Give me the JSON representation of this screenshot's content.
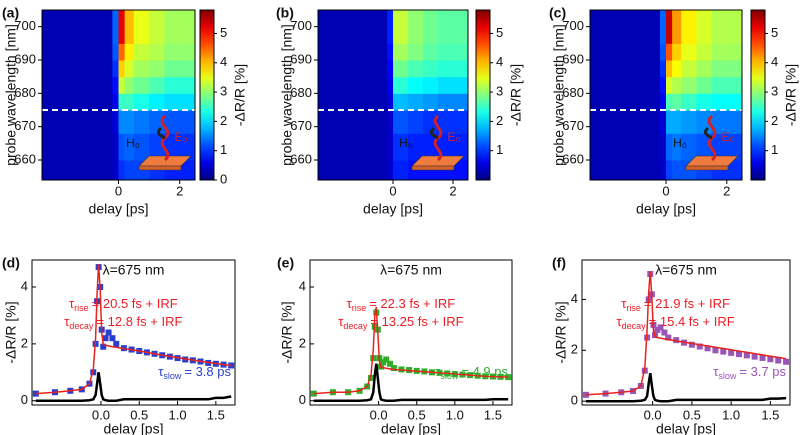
{
  "chart_data": [
    {
      "type": "heatmap",
      "label": "(a)",
      "xlabel": "delay [ps]",
      "ylabel": "probe wavelength [nm]",
      "colorbar_label": "-ΔR/R [%]",
      "x_edges": [
        -2.5,
        -0.2,
        0,
        0.2,
        0.5,
        1,
        1.5,
        2.5
      ],
      "y_edges": [
        654,
        660,
        668,
        675,
        680,
        685,
        690,
        695,
        705
      ],
      "values": [
        [
          0.3,
          0.4,
          1.0,
          1.1,
          1.1,
          1.0,
          0.9
        ],
        [
          0.3,
          0.4,
          1.2,
          1.3,
          1.2,
          1.1,
          1.0
        ],
        [
          0.3,
          0.5,
          1.5,
          1.5,
          1.4,
          1.3,
          1.2
        ],
        [
          0.3,
          0.6,
          2.5,
          2.5,
          2.3,
          2.1,
          2.0
        ],
        [
          0.3,
          0.8,
          3.3,
          3.0,
          2.8,
          2.6,
          2.4
        ],
        [
          0.3,
          1.0,
          3.9,
          3.4,
          3.1,
          3.0,
          2.8
        ],
        [
          0.3,
          1.2,
          4.5,
          3.7,
          3.3,
          3.2,
          3.0
        ],
        [
          0.3,
          1.3,
          5.2,
          4.0,
          3.5,
          3.3,
          3.1
        ]
      ],
      "xlim": [
        -2.5,
        2.5
      ],
      "ylim": [
        654,
        705
      ],
      "xticks": [
        0,
        2
      ],
      "yticks": [
        660,
        670,
        680,
        690,
        700
      ],
      "clim": [
        0,
        5.8
      ],
      "cticks": [
        0,
        1,
        2,
        3,
        4,
        5
      ],
      "colormap": "jet",
      "hline": 675,
      "inset_h": "H₀",
      "inset_e": "E₀"
    },
    {
      "type": "heatmap",
      "label": "(b)",
      "xlabel": "delay [ps]",
      "ylabel": "probe wavelength [nm]",
      "colorbar_label": "-ΔR/R [%]",
      "x_edges": [
        -2.5,
        -0.2,
        0,
        0.2,
        0.5,
        1,
        1.5,
        2.5
      ],
      "y_edges": [
        654,
        660,
        668,
        675,
        680,
        685,
        690,
        695,
        705
      ],
      "values": [
        [
          0.3,
          0.4,
          0.9,
          0.9,
          0.8,
          0.8,
          0.8
        ],
        [
          0.3,
          0.4,
          1.0,
          1.0,
          0.9,
          0.9,
          0.9
        ],
        [
          0.3,
          0.4,
          1.2,
          1.2,
          1.1,
          1.0,
          1.0
        ],
        [
          0.3,
          0.5,
          1.8,
          1.8,
          1.7,
          1.6,
          1.5
        ],
        [
          0.3,
          0.6,
          2.4,
          2.4,
          2.2,
          2.1,
          2.0
        ],
        [
          0.3,
          0.7,
          2.8,
          2.8,
          2.6,
          2.5,
          2.4
        ],
        [
          0.3,
          0.8,
          3.1,
          3.1,
          2.9,
          2.7,
          2.6
        ],
        [
          0.3,
          0.9,
          3.3,
          3.3,
          3.0,
          2.8,
          2.7
        ]
      ],
      "xlim": [
        -2.5,
        2.5
      ],
      "ylim": [
        654,
        705
      ],
      "xticks": [
        0,
        2
      ],
      "yticks": [
        660,
        670,
        680,
        690,
        700
      ],
      "clim": [
        0,
        5.8
      ],
      "cticks": [
        1,
        2,
        3,
        4,
        5
      ],
      "colormap": "jet",
      "hline": 675,
      "inset_h": "H₀",
      "inset_e": "E₀"
    },
    {
      "type": "heatmap",
      "label": "(c)",
      "xlabel": "delay [ps]",
      "ylabel": "probe wavelength [nm]",
      "colorbar_label": "-ΔR/R [%]",
      "x_edges": [
        -2.5,
        -0.2,
        0,
        0.2,
        0.5,
        1,
        1.5,
        2.5
      ],
      "y_edges": [
        654,
        660,
        668,
        675,
        680,
        685,
        690,
        695,
        705
      ],
      "values": [
        [
          0.3,
          0.4,
          1.1,
          1.2,
          1.2,
          1.1,
          1.0
        ],
        [
          0.3,
          0.4,
          1.3,
          1.4,
          1.3,
          1.2,
          1.1
        ],
        [
          0.3,
          0.5,
          1.7,
          1.7,
          1.6,
          1.5,
          1.4
        ],
        [
          0.3,
          0.6,
          2.6,
          2.7,
          2.5,
          2.3,
          2.2
        ],
        [
          0.3,
          0.8,
          3.4,
          3.2,
          3.0,
          2.8,
          2.6
        ],
        [
          0.3,
          1.0,
          4.0,
          3.6,
          3.3,
          3.1,
          2.9
        ],
        [
          0.3,
          1.2,
          4.6,
          3.9,
          3.5,
          3.3,
          3.1
        ],
        [
          0.3,
          1.3,
          5.4,
          4.2,
          3.7,
          3.4,
          3.2
        ]
      ],
      "xlim": [
        -2.5,
        2.5
      ],
      "ylim": [
        654,
        705
      ],
      "xticks": [
        0,
        2
      ],
      "yticks": [
        660,
        670,
        680,
        690,
        700
      ],
      "clim": [
        0,
        5.8
      ],
      "cticks": [
        1,
        2,
        3,
        4,
        5
      ],
      "colormap": "jet",
      "hline": 675,
      "inset_h": "H₀",
      "inset_e": "E₀"
    },
    {
      "type": "line",
      "label": "(d)",
      "title": "λ=675 nm",
      "xlabel": "delay [ps]",
      "ylabel": "-ΔR/R [%]",
      "xlim": [
        -0.9,
        1.75
      ],
      "ylim": [
        -0.15,
        4.95
      ],
      "xticks": [
        {
          "value": 0,
          "label": "0.0"
        },
        {
          "value": 0.5,
          "label": "0.5"
        },
        {
          "value": 1,
          "label": "1.0"
        },
        {
          "value": 1.5,
          "label": "1.5"
        }
      ],
      "yticks": [
        0,
        2,
        4
      ],
      "x": [
        -0.85,
        -0.6,
        -0.4,
        -0.25,
        -0.15,
        -0.1,
        -0.07,
        -0.05,
        -0.03,
        -0.01,
        0.01,
        0.03,
        0.06,
        0.1,
        0.15,
        0.2,
        0.3,
        0.4,
        0.5,
        0.6,
        0.7,
        0.8,
        0.9,
        1.0,
        1.1,
        1.2,
        1.3,
        1.4,
        1.5,
        1.6,
        1.7
      ],
      "series": [
        {
          "style": "markers",
          "color": "#2a3fd0",
          "values": [
            0.25,
            0.3,
            0.35,
            0.4,
            0.6,
            1.0,
            2.0,
            3.5,
            4.7,
            4.0,
            2.5,
            1.9,
            2.2,
            2.4,
            2.2,
            2.0,
            1.85,
            1.8,
            1.75,
            1.7,
            1.65,
            1.6,
            1.55,
            1.5,
            1.45,
            1.42,
            1.38,
            1.33,
            1.3,
            1.27,
            1.24
          ]
        },
        {
          "style": "line",
          "color": "#e8221c",
          "values": [
            0.25,
            0.3,
            0.35,
            0.4,
            0.6,
            1.1,
            2.2,
            3.8,
            4.8,
            3.9,
            2.4,
            2.0,
            1.95,
            1.93,
            1.9,
            1.88,
            1.83,
            1.79,
            1.75,
            1.7,
            1.65,
            1.6,
            1.56,
            1.52,
            1.47,
            1.43,
            1.39,
            1.35,
            1.31,
            1.27,
            1.24
          ]
        },
        {
          "style": "line",
          "color": "#000000",
          "values": [
            0,
            0,
            0,
            0,
            0.02,
            0.05,
            0.2,
            0.6,
            1.0,
            0.6,
            0.2,
            0.05,
            0.02,
            0,
            0,
            0,
            0.05,
            0.05,
            0.05,
            0.05,
            0.05,
            0.05,
            0.05,
            0.05,
            0.05,
            0.05,
            0.05,
            0.05,
            0.1,
            0.1,
            0.15
          ]
        }
      ],
      "annotations": [
        {
          "sym": "τ",
          "sub": "rise",
          "rest": "= 20.5 fs + IRF",
          "color": "#ee1c24"
        },
        {
          "sym": "τ",
          "sub": "decay",
          "rest": "= 12.8 fs + IRF",
          "color": "#ee1c24"
        },
        {
          "sym": "τ",
          "sub": "slow",
          "rest": "= 3.8 ps",
          "color": "#2a3fd0"
        }
      ]
    },
    {
      "type": "line",
      "label": "(e)",
      "title": "λ=675 nm",
      "xlabel": "delay [ps]",
      "ylabel": "-ΔR/R [%]",
      "xlim": [
        -0.9,
        1.75
      ],
      "ylim": [
        -0.15,
        4.95
      ],
      "xticks": [
        {
          "value": 0,
          "label": "0.0"
        },
        {
          "value": 0.5,
          "label": "0.5"
        },
        {
          "value": 1,
          "label": "1.0"
        },
        {
          "value": 1.5,
          "label": "1.5"
        }
      ],
      "yticks": [
        0,
        2,
        4
      ],
      "x": [
        -0.85,
        -0.6,
        -0.4,
        -0.25,
        -0.15,
        -0.1,
        -0.07,
        -0.05,
        -0.03,
        -0.01,
        0.01,
        0.03,
        0.06,
        0.1,
        0.15,
        0.2,
        0.3,
        0.4,
        0.5,
        0.6,
        0.7,
        0.8,
        0.9,
        1.0,
        1.1,
        1.2,
        1.3,
        1.4,
        1.5,
        1.6,
        1.7
      ],
      "series": [
        {
          "style": "markers",
          "color": "#2fae2a",
          "values": [
            0.25,
            0.3,
            0.3,
            0.35,
            0.5,
            0.8,
            1.5,
            2.6,
            3.1,
            2.5,
            1.5,
            1.2,
            1.35,
            1.45,
            1.3,
            1.15,
            1.1,
            1.08,
            1.05,
            1.03,
            1.0,
            0.98,
            0.96,
            0.94,
            0.92,
            0.9,
            0.88,
            0.86,
            0.85,
            0.84,
            0.83
          ]
        },
        {
          "style": "line",
          "color": "#e8221c",
          "values": [
            0.25,
            0.3,
            0.3,
            0.35,
            0.5,
            0.9,
            1.8,
            3.0,
            3.3,
            2.4,
            1.4,
            1.18,
            1.16,
            1.14,
            1.12,
            1.1,
            1.08,
            1.06,
            1.04,
            1.02,
            1.0,
            0.98,
            0.96,
            0.94,
            0.92,
            0.9,
            0.88,
            0.86,
            0.85,
            0.84,
            0.83
          ]
        },
        {
          "style": "line",
          "color": "#000000",
          "values": [
            0,
            0,
            0,
            0,
            0.02,
            0.05,
            0.3,
            0.9,
            1.3,
            0.8,
            0.3,
            0.05,
            0.02,
            0,
            0,
            0,
            0.03,
            0.03,
            0.03,
            0.03,
            0.03,
            0.03,
            0.03,
            0.03,
            0.03,
            0.03,
            0.03,
            0.03,
            0.05,
            0.05,
            0.05
          ]
        }
      ],
      "annotations": [
        {
          "sym": "τ",
          "sub": "rise",
          "rest": "= 22.3 fs + IRF",
          "color": "#ee1c24"
        },
        {
          "sym": "τ",
          "sub": "decay",
          "rest": "= 13.25 fs + IRF",
          "color": "#ee1c24"
        },
        {
          "sym": "τ",
          "sub": "slow",
          "rest": "= 4.9 ps",
          "color": "#2fae2a"
        }
      ]
    },
    {
      "type": "line",
      "label": "(f)",
      "title": "λ=675 nm",
      "xlabel": "delay [ps]",
      "ylabel": "-ΔR/R [%]",
      "xlim": [
        -0.9,
        1.75
      ],
      "ylim": [
        -0.15,
        5.55
      ],
      "xticks": [
        {
          "value": 0,
          "label": "0.0"
        },
        {
          "value": 0.5,
          "label": "0.5"
        },
        {
          "value": 1,
          "label": "1.0"
        },
        {
          "value": 1.5,
          "label": "1.5"
        }
      ],
      "yticks": [
        0,
        2,
        4
      ],
      "x": [
        -0.85,
        -0.6,
        -0.4,
        -0.25,
        -0.15,
        -0.1,
        -0.07,
        -0.05,
        -0.03,
        -0.01,
        0.01,
        0.03,
        0.06,
        0.1,
        0.15,
        0.2,
        0.3,
        0.4,
        0.5,
        0.6,
        0.7,
        0.8,
        0.9,
        1.0,
        1.1,
        1.2,
        1.3,
        1.4,
        1.5,
        1.6,
        1.7
      ],
      "series": [
        {
          "style": "markers",
          "color": "#9a55b8",
          "values": [
            0.25,
            0.3,
            0.35,
            0.4,
            0.6,
            1.2,
            2.5,
            4.0,
            5.0,
            4.2,
            3.0,
            2.6,
            2.8,
            2.9,
            2.7,
            2.5,
            2.4,
            2.3,
            2.22,
            2.15,
            2.08,
            2.0,
            1.95,
            1.9,
            1.85,
            1.8,
            1.75,
            1.7,
            1.65,
            1.6,
            1.55
          ]
        },
        {
          "style": "line",
          "color": "#e8221c",
          "values": [
            0.25,
            0.3,
            0.35,
            0.4,
            0.6,
            1.3,
            2.8,
            4.3,
            5.1,
            4.0,
            2.8,
            2.55,
            2.5,
            2.48,
            2.45,
            2.42,
            2.37,
            2.32,
            2.27,
            2.22,
            2.17,
            2.12,
            2.07,
            2.02,
            1.97,
            1.92,
            1.87,
            1.82,
            1.77,
            1.72,
            1.67
          ]
        },
        {
          "style": "line",
          "color": "#000000",
          "values": [
            0,
            0,
            0,
            0,
            0.02,
            0.05,
            0.2,
            0.7,
            1.1,
            0.6,
            0.2,
            0.05,
            0.02,
            0,
            0,
            0,
            0.05,
            0.05,
            0.05,
            0.05,
            0.05,
            0.05,
            0.05,
            0.05,
            0.05,
            0.05,
            0.05,
            0.05,
            0.1,
            0.1,
            0.12
          ]
        }
      ],
      "annotations": [
        {
          "sym": "τ",
          "sub": "rise",
          "rest": "= 21.9 fs + IRF",
          "color": "#ee1c24"
        },
        {
          "sym": "τ",
          "sub": "decay",
          "rest": "= 15.4 fs + IRF",
          "color": "#ee1c24"
        },
        {
          "sym": "τ",
          "sub": "slow",
          "rest": "= 3.7 ps",
          "color": "#9a55b8"
        }
      ]
    }
  ]
}
